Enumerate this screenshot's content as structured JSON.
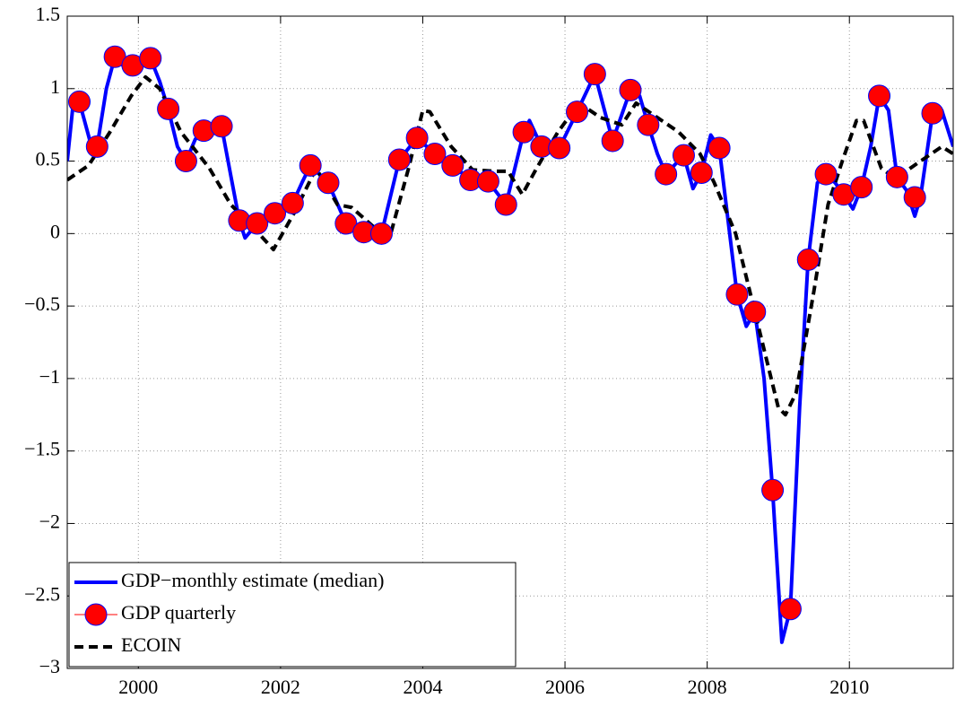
{
  "chart_data": {
    "type": "line",
    "xlim": [
      1999,
      2011.46
    ],
    "xticks": [
      2000,
      2002,
      2004,
      2006,
      2008,
      2010
    ],
    "ylim": [
      -3,
      1.5
    ],
    "yticks": [
      {
        "value": -3,
        "label": "−3"
      },
      {
        "value": -2.5,
        "label": "−2.5"
      },
      {
        "value": -2,
        "label": "−2"
      },
      {
        "value": -1.5,
        "label": "−1.5"
      },
      {
        "value": -1,
        "label": "−1"
      },
      {
        "value": -0.5,
        "label": "−0.5"
      },
      0,
      0.5,
      1,
      1.5
    ],
    "grid": true,
    "legend": "lower left",
    "series": [
      {
        "name": "GDP−monthly estimate (median)",
        "color": "#0000ff",
        "marker": "none",
        "dash": false,
        "x": [
          1999.0,
          1999.08,
          1999.17,
          1999.33,
          1999.42,
          1999.55,
          1999.67,
          1999.8,
          1999.92,
          2000.05,
          2000.17,
          2000.3,
          2000.42,
          2000.55,
          2000.67,
          2000.8,
          2000.92,
          2001.05,
          2001.17,
          2001.3,
          2001.42,
          2001.5,
          2001.67,
          2001.92,
          2002.17,
          2002.3,
          2002.42,
          2002.67,
          2002.92,
          2003.17,
          2003.42,
          2003.67,
          2003.92,
          2004.17,
          2004.42,
          2004.67,
          2004.92,
          2005.17,
          2005.42,
          2005.5,
          2005.67,
          2005.92,
          2006.17,
          2006.42,
          2006.67,
          2006.92,
          2007.05,
          2007.17,
          2007.3,
          2007.42,
          2007.67,
          2007.8,
          2007.92,
          2008.05,
          2008.17,
          2008.42,
          2008.55,
          2008.67,
          2008.8,
          2008.92,
          2009.05,
          2009.17,
          2009.3,
          2009.42,
          2009.55,
          2009.67,
          2009.8,
          2009.92,
          2010.05,
          2010.17,
          2010.3,
          2010.42,
          2010.55,
          2010.67,
          2010.8,
          2010.92,
          2011.0,
          2011.17,
          2011.3,
          2011.46
        ],
        "values": [
          0.5,
          0.88,
          0.91,
          0.62,
          0.6,
          1.0,
          1.22,
          1.15,
          1.16,
          1.2,
          1.21,
          1.05,
          0.86,
          0.6,
          0.5,
          0.65,
          0.71,
          0.76,
          0.74,
          0.4,
          0.09,
          -0.03,
          0.07,
          0.14,
          0.21,
          0.35,
          0.47,
          0.35,
          0.07,
          0.01,
          0.0,
          0.51,
          0.66,
          0.55,
          0.47,
          0.37,
          0.36,
          0.2,
          0.7,
          0.78,
          0.6,
          0.59,
          0.84,
          1.1,
          0.64,
          0.99,
          0.95,
          0.75,
          0.55,
          0.41,
          0.54,
          0.31,
          0.42,
          0.68,
          0.59,
          -0.42,
          -0.64,
          -0.54,
          -1.0,
          -1.77,
          -2.82,
          -2.59,
          -1.2,
          -0.18,
          0.35,
          0.41,
          0.35,
          0.27,
          0.17,
          0.32,
          0.6,
          0.95,
          0.85,
          0.39,
          0.3,
          0.12,
          0.25,
          0.83,
          0.85,
          0.6
        ]
      },
      {
        "name": "GDP quarterly",
        "color": "#ff0000",
        "marker": "circle",
        "dash": false,
        "x": [
          1999.17,
          1999.42,
          1999.67,
          1999.92,
          2000.17,
          2000.42,
          2000.67,
          2000.92,
          2001.17,
          2001.42,
          2001.67,
          2001.92,
          2002.17,
          2002.42,
          2002.67,
          2002.92,
          2003.17,
          2003.42,
          2003.67,
          2003.92,
          2004.17,
          2004.42,
          2004.67,
          2004.92,
          2005.17,
          2005.42,
          2005.67,
          2005.92,
          2006.17,
          2006.42,
          2006.67,
          2006.92,
          2007.17,
          2007.42,
          2007.67,
          2007.92,
          2008.17,
          2008.42,
          2008.67,
          2008.92,
          2009.17,
          2009.42,
          2009.67,
          2009.92,
          2010.17,
          2010.42,
          2010.67,
          2010.92,
          2011.17
        ],
        "values": [
          0.91,
          0.6,
          1.22,
          1.16,
          1.21,
          0.86,
          0.5,
          0.71,
          0.74,
          0.09,
          0.07,
          0.14,
          0.21,
          0.47,
          0.35,
          0.07,
          0.01,
          0.0,
          0.51,
          0.66,
          0.55,
          0.47,
          0.37,
          0.36,
          0.2,
          0.7,
          0.6,
          0.59,
          0.84,
          1.1,
          0.64,
          0.99,
          0.75,
          0.41,
          0.54,
          0.42,
          0.59,
          -0.42,
          -0.54,
          -1.77,
          -2.59,
          -0.18,
          0.41,
          0.27,
          0.32,
          0.95,
          0.39,
          0.25,
          0.83
        ]
      },
      {
        "name": "ECOIN",
        "color": "#000000",
        "marker": "none",
        "dash": true,
        "x": [
          1999.0,
          1999.3,
          1999.6,
          1999.9,
          2000.1,
          2000.3,
          2000.6,
          2001.0,
          2001.3,
          2001.6,
          2001.9,
          2002.2,
          2002.5,
          2002.8,
          2003.0,
          2003.3,
          2003.55,
          2003.8,
          2004.0,
          2004.1,
          2004.4,
          2004.7,
          2005.0,
          2005.2,
          2005.4,
          2005.6,
          2005.9,
          2006.2,
          2006.5,
          2006.8,
          2007.0,
          2007.3,
          2007.6,
          2007.9,
          2008.1,
          2008.4,
          2008.6,
          2008.8,
          2009.0,
          2009.1,
          2009.25,
          2009.5,
          2009.7,
          2009.9,
          2010.1,
          2010.2,
          2010.45,
          2010.65,
          2011.0,
          2011.3,
          2011.46
        ],
        "values": [
          0.37,
          0.47,
          0.7,
          0.95,
          1.08,
          1.0,
          0.7,
          0.45,
          0.2,
          0.05,
          -0.11,
          0.15,
          0.45,
          0.2,
          0.18,
          0.05,
          0.0,
          0.45,
          0.85,
          0.84,
          0.6,
          0.44,
          0.43,
          0.43,
          0.27,
          0.45,
          0.7,
          0.9,
          0.8,
          0.75,
          0.9,
          0.8,
          0.7,
          0.55,
          0.35,
          0.0,
          -0.4,
          -0.8,
          -1.2,
          -1.25,
          -1.1,
          -0.4,
          0.2,
          0.5,
          0.78,
          0.78,
          0.45,
          0.38,
          0.5,
          0.6,
          0.55
        ]
      }
    ]
  }
}
